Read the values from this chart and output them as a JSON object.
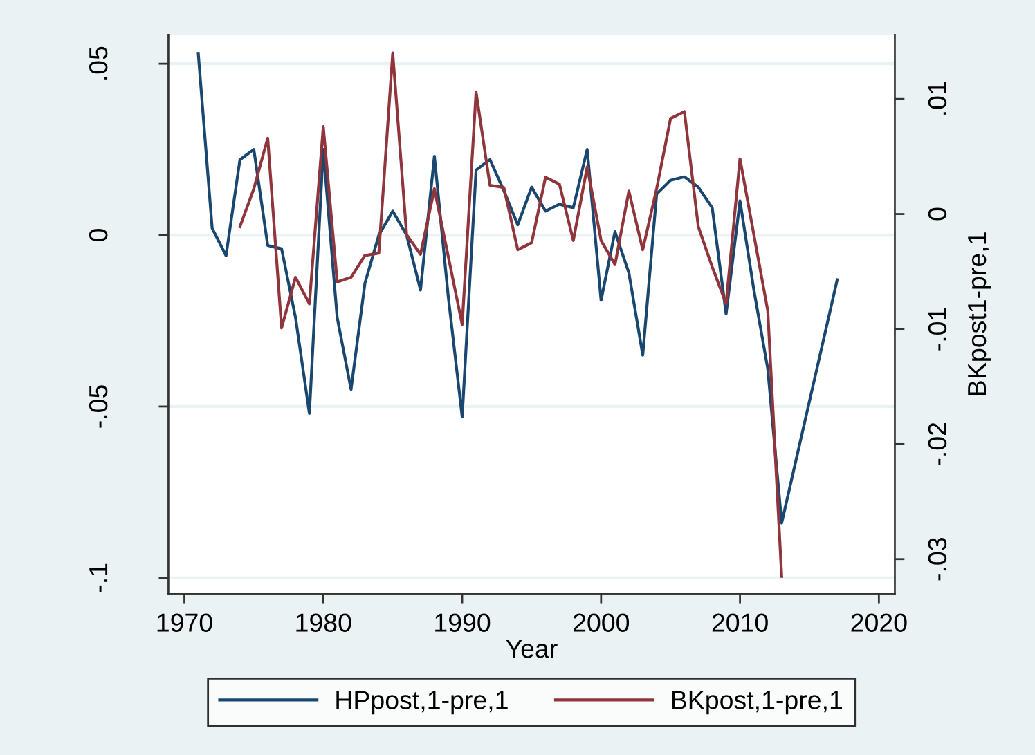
{
  "chart_data": {
    "type": "line",
    "xlabel": "Year",
    "y2label": "BKpost1-pre,1",
    "xlim": [
      1968.85,
      2021.15
    ],
    "xticks": [
      1970,
      1980,
      1990,
      2000,
      2010,
      2020
    ],
    "ylim": [
      -0.1046,
      0.0585
    ],
    "yticks": [
      {
        "value": -0.1,
        "label": "-.1"
      },
      {
        "value": -0.05,
        "label": "-.05"
      },
      0,
      {
        "value": 0.05,
        "label": ".05"
      }
    ],
    "y2lim": [
      -0.033,
      0.0156
    ],
    "y2ticks": [
      {
        "value": -0.03,
        "label": "-.03"
      },
      {
        "value": -0.02,
        "label": "-.02"
      },
      {
        "value": -0.01,
        "label": "-.01"
      },
      0,
      {
        "value": 0.01,
        "label": ".01"
      }
    ],
    "grid": "y",
    "legend": "bottom",
    "series": [
      {
        "name": "HPpost,1-pre,1",
        "color": "#1a476f",
        "x": [
          1971,
          1972,
          1973,
          1974,
          1975,
          1976,
          1977,
          1978,
          1979,
          1980,
          1981,
          1982,
          1983,
          1984,
          1985,
          1986,
          1987,
          1988,
          1989,
          1990,
          1991,
          1992,
          1993,
          1994,
          1995,
          1996,
          1997,
          1998,
          1999,
          2000,
          2001,
          2002,
          2003,
          2004,
          2005,
          2006,
          2007,
          2008,
          2009,
          2010,
          2011,
          2012,
          2013,
          2017
        ],
        "values": [
          0.053,
          0.002,
          -0.006,
          0.022,
          0.025,
          -0.003,
          -0.004,
          -0.024,
          -0.052,
          0.025,
          -0.024,
          -0.045,
          -0.014,
          0.0,
          0.007,
          0.0,
          -0.016,
          0.023,
          -0.018,
          -0.053,
          0.019,
          0.022,
          0.013,
          0.003,
          0.014,
          0.007,
          0.009,
          0.008,
          0.025,
          -0.019,
          0.001,
          -0.011,
          -0.035,
          0.012,
          0.016,
          0.017,
          0.014,
          0.008,
          -0.023,
          0.01,
          -0.016,
          -0.039,
          -0.084,
          -0.013
        ]
      },
      {
        "name": "BKpost,1-pre,1",
        "color": "#90353b",
        "axis": "y2",
        "x": [
          1974,
          1975,
          1976,
          1977,
          1978,
          1979,
          1980,
          1981,
          1982,
          1983,
          1984,
          1985,
          1986,
          1987,
          1988,
          1989,
          1990,
          1991,
          1992,
          1993,
          1994,
          1995,
          1996,
          1997,
          1998,
          1999,
          2000,
          2001,
          2002,
          2003,
          2004,
          2005,
          2006,
          2007,
          2008,
          2009,
          2010,
          2011,
          2012,
          2013
        ],
        "values": [
          -0.0011,
          0.0022,
          0.0066,
          -0.0099,
          -0.0055,
          -0.0078,
          0.0076,
          -0.0059,
          -0.0055,
          -0.0036,
          -0.0034,
          0.014,
          -0.0018,
          -0.0035,
          0.0022,
          -0.0037,
          -0.0096,
          0.0106,
          0.0025,
          0.0023,
          -0.0031,
          -0.0025,
          0.0032,
          0.0026,
          -0.0023,
          0.0041,
          -0.0023,
          -0.0044,
          0.002,
          -0.0031,
          0.0022,
          0.0083,
          0.0089,
          -0.0011,
          -0.0046,
          -0.0078,
          0.0048,
          -0.0018,
          -0.0084,
          -0.0315
        ]
      }
    ]
  }
}
